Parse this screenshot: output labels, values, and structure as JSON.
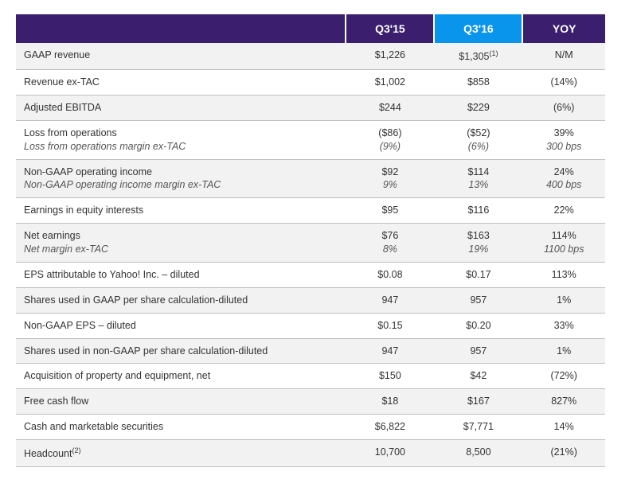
{
  "table": {
    "header_colors": {
      "col0": "#3b1e6d",
      "col1": "#3b1e6d",
      "col2": "#0a95ec",
      "col3": "#3b1e6d"
    },
    "row_bg_even": "#f2f2f2",
    "row_bg_odd": "#ffffff",
    "border_color": "#bfbfbf",
    "text_color": "#333333",
    "columns": [
      "",
      "Q3'15",
      "Q3'16",
      "YOY"
    ],
    "rows": [
      {
        "label": "GAAP revenue",
        "q315": "$1,226",
        "q316": "$1,305",
        "q316_sup": "(1)",
        "yoy": "N/M"
      },
      {
        "label": "Revenue ex-TAC",
        "q315": "$1,002",
        "q316": "$858",
        "yoy": "(14%)"
      },
      {
        "label": "Adjusted EBITDA",
        "q315": "$244",
        "q316": "$229",
        "yoy": "(6%)"
      },
      {
        "label": "Loss from operations",
        "sublabel": "Loss from operations margin ex-TAC",
        "q315": "($86)",
        "q315_sub": "(9%)",
        "q316": "($52)",
        "q316_sub": "(6%)",
        "yoy": "39%",
        "yoy_sub": "300 bps"
      },
      {
        "label": "Non-GAAP operating income",
        "sublabel": "Non-GAAP operating income margin ex-TAC",
        "q315": "$92",
        "q315_sub": "9%",
        "q316": "$114",
        "q316_sub": "13%",
        "yoy": "24%",
        "yoy_sub": "400 bps"
      },
      {
        "label": "Earnings in equity interests",
        "q315": "$95",
        "q316": "$116",
        "yoy": "22%"
      },
      {
        "label": "Net earnings",
        "sublabel": "Net margin ex-TAC",
        "q315": "$76",
        "q315_sub": "8%",
        "q316": "$163",
        "q316_sub": "19%",
        "yoy": "114%",
        "yoy_sub": "1100 bps"
      },
      {
        "label": "EPS attributable to Yahoo! Inc. – diluted",
        "q315": "$0.08",
        "q316": "$0.17",
        "yoy": "113%"
      },
      {
        "label": "Shares used in GAAP per share calculation-diluted",
        "q315": "947",
        "q316": "957",
        "yoy": "1%"
      },
      {
        "label": "Non-GAAP EPS – diluted",
        "q315": "$0.15",
        "q316": "$0.20",
        "yoy": "33%"
      },
      {
        "label": "Shares used in non-GAAP per share calculation-diluted",
        "q315": "947",
        "q316": "957",
        "yoy": "1%"
      },
      {
        "label": "Acquisition of property and equipment, net",
        "q315": "$150",
        "q316": "$42",
        "yoy": "(72%)"
      },
      {
        "label": "Free cash flow",
        "q315": "$18",
        "q316": "$167",
        "yoy": "827%"
      },
      {
        "label": "Cash and marketable securities",
        "q315": "$6,822",
        "q316": "$7,771",
        "yoy": "14%"
      },
      {
        "label": "Headcount",
        "label_sup": "(2)",
        "q315": "10,700",
        "q316": "8,500",
        "yoy": "(21%)"
      }
    ]
  }
}
